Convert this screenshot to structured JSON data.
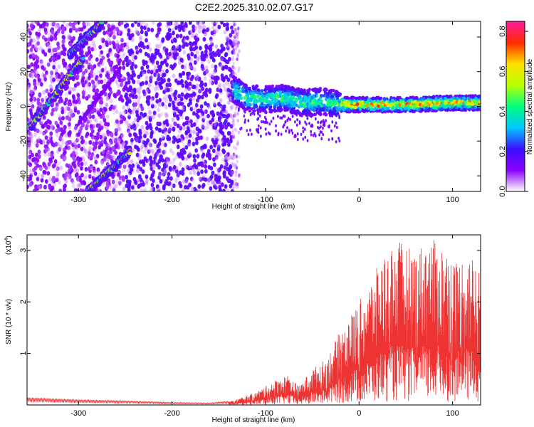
{
  "title": "C2E2.2025.310.02.07.G17",
  "chart_data": [
    {
      "type": "heatmap",
      "name": "spectrogram",
      "xlabel": "Height of straight line (km)",
      "ylabel": "Frequency (Hz)",
      "xlim": [
        -355,
        130
      ],
      "ylim": [
        -49,
        49
      ],
      "xticks": [
        -300,
        -200,
        -100,
        0,
        100
      ],
      "xtick_labels": [
        "-300",
        "-200",
        "-100",
        "0",
        "100"
      ],
      "yticks": [
        -40,
        -20,
        0,
        20,
        40
      ],
      "ytick_labels": [
        "-40",
        "-20",
        "0",
        "20",
        "40"
      ],
      "noise_region": {
        "x_range": [
          -355,
          -135
        ],
        "noise_edge_right": -128
      },
      "bright_tracks": [
        {
          "name": "rising-track-upper",
          "x_range": [
            -352,
            -295
          ],
          "frequency_at_start": -12,
          "frequency_at_end": 28
        },
        {
          "name": "rising-track-top",
          "x_range": [
            -310,
            -275
          ],
          "frequency_at_start": 30,
          "frequency_at_end": 48
        },
        {
          "name": "rising-track-lower",
          "x_range": [
            -290,
            -245
          ],
          "frequency_at_start": -49,
          "frequency_at_end": -26
        },
        {
          "name": "faint-diagonal",
          "x_range": [
            -300,
            -255
          ],
          "frequency_at_start": -10,
          "frequency_at_end": 22
        }
      ],
      "central_band": {
        "x_range": [
          -135,
          130
        ],
        "center_frequency": [
          {
            "x": -135,
            "f": 10
          },
          {
            "x": -120,
            "f": 5
          },
          {
            "x": -100,
            "f": 4
          },
          {
            "x": -80,
            "f": 5
          },
          {
            "x": -60,
            "f": 2
          },
          {
            "x": -40,
            "f": 3
          },
          {
            "x": -20,
            "f": 1
          },
          {
            "x": 0,
            "f": 1
          },
          {
            "x": 50,
            "f": 1
          },
          {
            "x": 100,
            "f": 2
          },
          {
            "x": 130,
            "f": 2
          }
        ],
        "half_width_hz": 6
      },
      "colorbar": {
        "label": "Normalized spectral amplitude",
        "range": [
          0.0,
          0.85
        ],
        "ticks": [
          0.0,
          0.2,
          0.4,
          0.6,
          0.8
        ],
        "tick_labels": [
          "0.0",
          "0.2",
          "0.4",
          "0.6",
          "0.8"
        ],
        "colors": [
          "#ffffff",
          "#8a00ff",
          "#3a10ff",
          "#00c8ff",
          "#00ff80",
          "#b8ff00",
          "#ffe000",
          "#ff2a00",
          "#ff1aa0"
        ]
      }
    },
    {
      "type": "line",
      "name": "snr",
      "xlabel": "Height of straight line (km)",
      "ylabel": "SNR (10 * v/v)",
      "scale_label": "(x10",
      "scale_exponent": "4",
      "scale_suffix": ")",
      "xlim": [
        -355,
        130
      ],
      "ylim": [
        0,
        3.3
      ],
      "xticks": [
        -300,
        -200,
        -100,
        0,
        100
      ],
      "xtick_labels": [
        "-300",
        "-200",
        "-100",
        "0",
        "100"
      ],
      "yticks": [
        1,
        2,
        3
      ],
      "ytick_labels": [
        "1",
        "2",
        "3"
      ],
      "color": "#ee3333",
      "envelope": [
        {
          "x": -355,
          "y": 0.14
        },
        {
          "x": -300,
          "y": 0.1
        },
        {
          "x": -250,
          "y": 0.08
        },
        {
          "x": -200,
          "y": 0.05
        },
        {
          "x": -160,
          "y": 0.04
        },
        {
          "x": -135,
          "y": 0.08
        },
        {
          "x": -110,
          "y": 0.25
        },
        {
          "x": -90,
          "y": 0.48
        },
        {
          "x": -75,
          "y": 0.6
        },
        {
          "x": -65,
          "y": 0.35
        },
        {
          "x": -50,
          "y": 0.7
        },
        {
          "x": -35,
          "y": 0.9
        },
        {
          "x": -20,
          "y": 1.45
        },
        {
          "x": -5,
          "y": 1.85
        },
        {
          "x": 10,
          "y": 2.3
        },
        {
          "x": 25,
          "y": 2.9
        },
        {
          "x": 40,
          "y": 3.2
        },
        {
          "x": 60,
          "y": 3.0
        },
        {
          "x": 75,
          "y": 3.25
        },
        {
          "x": 90,
          "y": 3.1
        },
        {
          "x": 105,
          "y": 2.8
        },
        {
          "x": 118,
          "y": 3.0
        },
        {
          "x": 130,
          "y": 2.6
        }
      ]
    }
  ]
}
